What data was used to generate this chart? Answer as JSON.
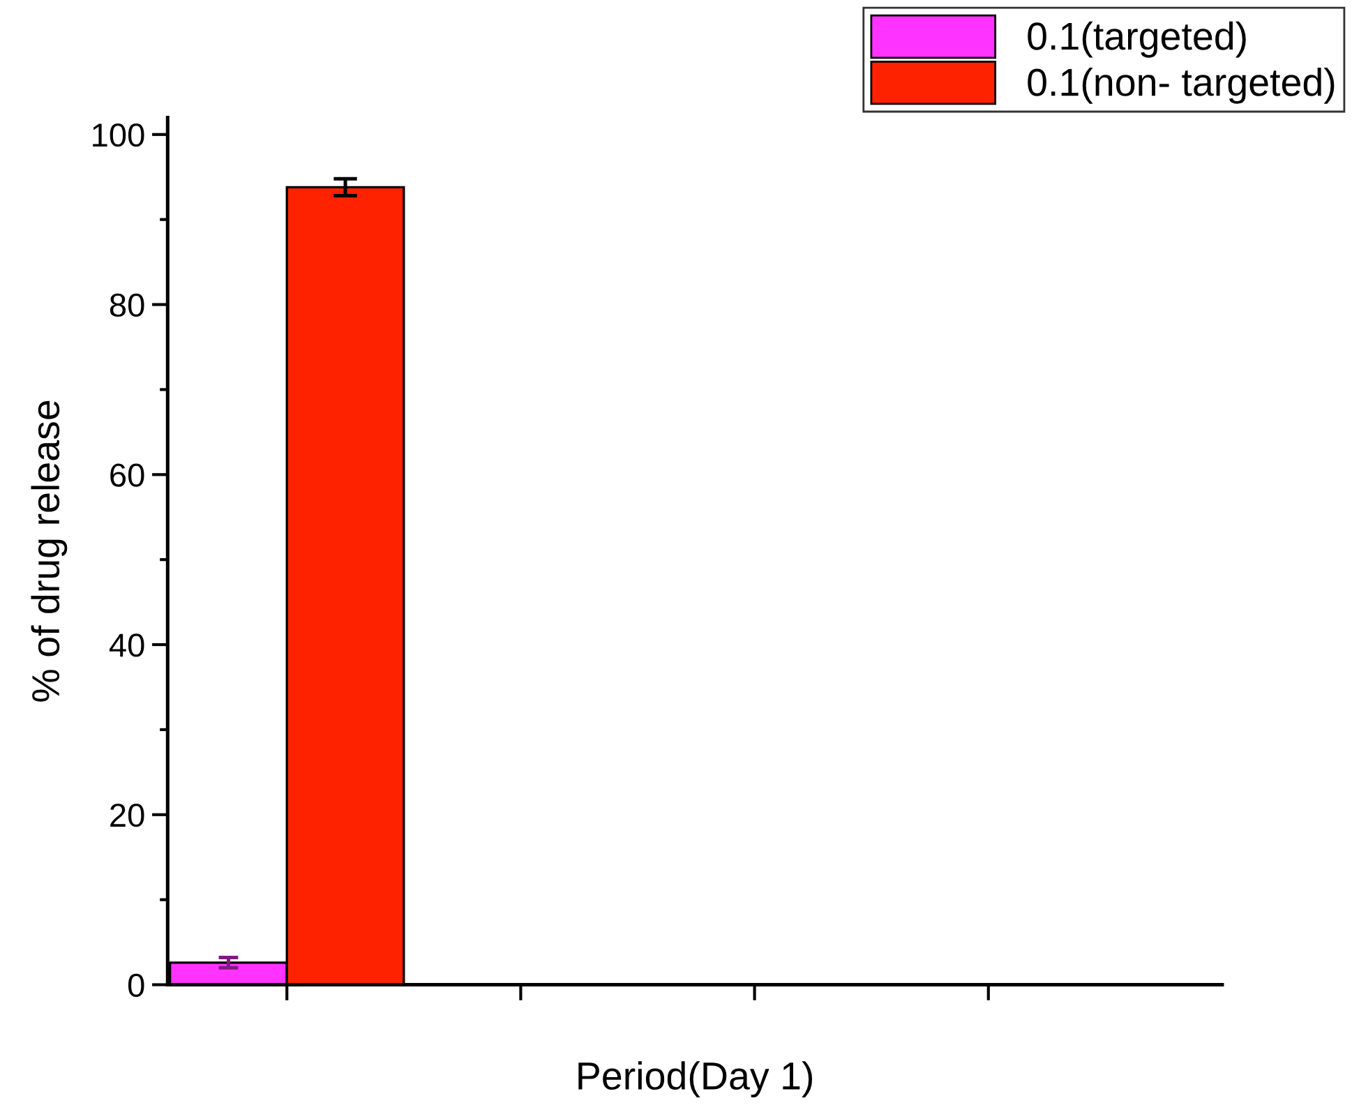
{
  "chart_data": {
    "type": "bar",
    "xlabel": "Period(Day 1)",
    "ylabel": "% of drug release",
    "categories": [
      null,
      null,
      null,
      null
    ],
    "series": [
      {
        "name": "0.1(targeted)",
        "color": "#ff33ff",
        "values": [
          2.6,
          null,
          null,
          null
        ],
        "errors": [
          0.6,
          null,
          null,
          null
        ]
      },
      {
        "name": "0.1(non- targeted)",
        "color": "#ff2200",
        "values": [
          93.8,
          null,
          null,
          null
        ],
        "errors": [
          1.0,
          null,
          null,
          null
        ]
      }
    ],
    "ylim": [
      0,
      102
    ],
    "yticks": [
      0,
      20,
      40,
      60,
      80,
      100
    ],
    "grid": false,
    "legend": "top right"
  }
}
